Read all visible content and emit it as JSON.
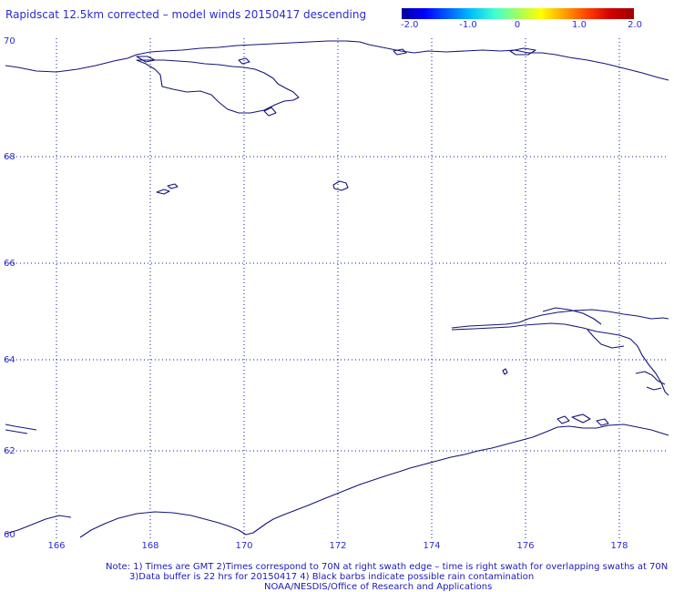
{
  "title": "Rapidscat 12.5km corrected – model winds 20150417 descending",
  "colorbar": {
    "labels": [
      "-2.0",
      "-1.0",
      "0",
      "1.0",
      "2.0"
    ],
    "colors": [
      "#0000a0",
      "#0000ff",
      "#0060ff",
      "#00c0ff",
      "#40ffd0",
      "#a0ff60",
      "#ffff00",
      "#ffa000",
      "#ff4000",
      "#d00000",
      "#a00000"
    ]
  },
  "map": {
    "lat_labels": [
      "70",
      "68",
      "66",
      "64",
      "62",
      "60"
    ],
    "lon_labels": [
      "166",
      "168",
      "170",
      "172",
      "174",
      "176",
      "178"
    ],
    "grid_color": "#0a1a9a",
    "coast_color": "#14147a"
  },
  "notes": {
    "line1": "Note: 1) Times are GMT 2)Times correspond to 70N at right swath edge – time is right swath for overlapping swaths at 70N",
    "line2": "3)Data buffer is 22 hrs for 20150417 4) Black barbs indicate possible rain contamination",
    "line3": "NOAA/NESDIS/Office of Research and Applications"
  }
}
